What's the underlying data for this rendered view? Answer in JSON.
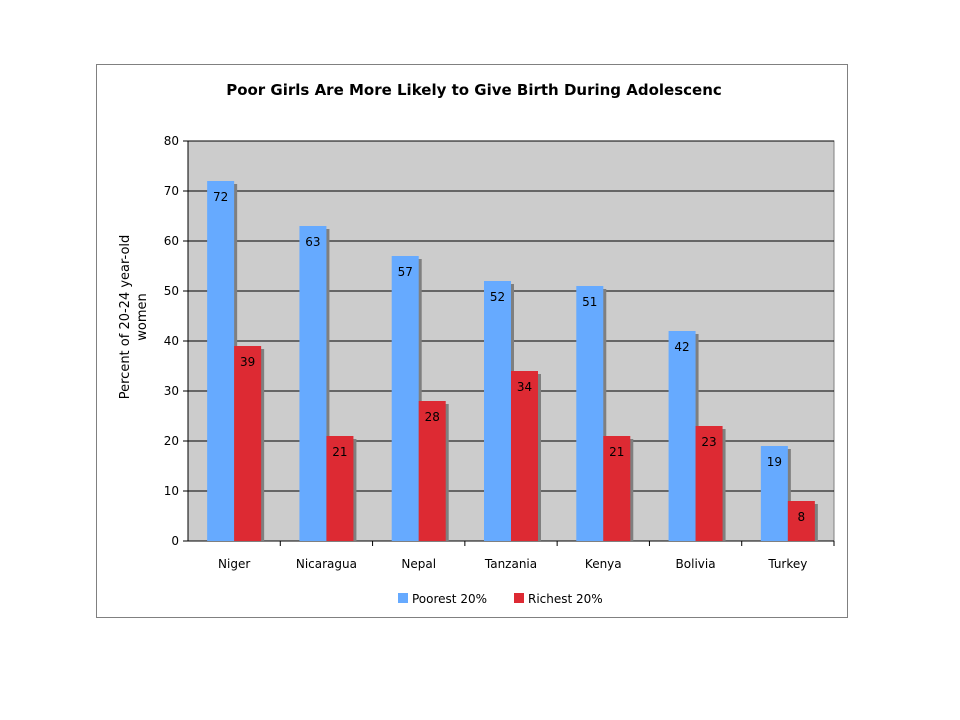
{
  "chart_data": {
    "type": "bar",
    "title": "Poor Girls Are More Likely to Give Birth During Adolescenc",
    "xlabel": "",
    "ylabel_lines": [
      "Percent of 20-24 year-old",
      "women"
    ],
    "categories": [
      "Niger",
      "Nicaragua",
      "Nepal",
      "Tanzania",
      "Kenya",
      "Bolivia",
      "Turkey"
    ],
    "series": [
      {
        "name": "Poorest 20%",
        "color": "#66aaff",
        "values": [
          72,
          63,
          57,
          52,
          51,
          42,
          19
        ]
      },
      {
        "name": "Richest 20%",
        "color": "#dd2a33",
        "values": [
          39,
          21,
          28,
          34,
          21,
          23,
          8
        ]
      }
    ],
    "ylim": [
      0,
      80
    ],
    "yticks": [
      0,
      10,
      20,
      30,
      40,
      50,
      60,
      70,
      80
    ],
    "grid": true,
    "legend_position": "bottom",
    "plot_background": "#cccccc"
  }
}
